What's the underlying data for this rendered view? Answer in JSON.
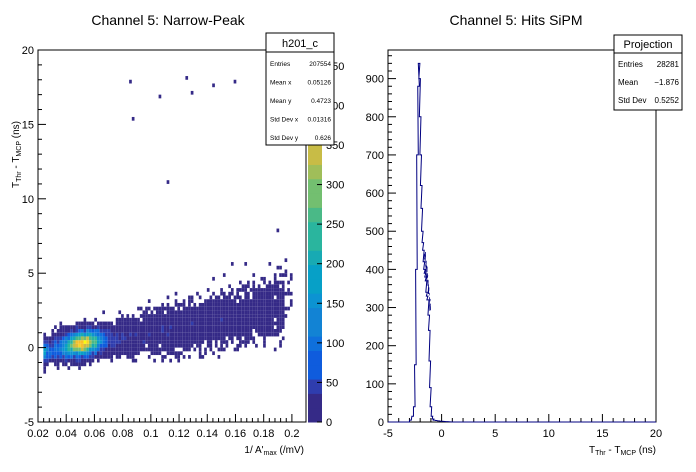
{
  "chart_data": [
    {
      "type": "heatmap",
      "title": "Channel 5: Narrow-Peak",
      "xlabel": "1/ A'max (/mV)",
      "xlabel_parts": {
        "main": "1/ A'",
        "sub": "max",
        "unit": " (/mV)"
      },
      "ylabel": "TThr - TMCP (ns)",
      "ylabel_parts": {
        "t1": "T",
        "s1": "Thr",
        "mid": " - T",
        "s2": "MCP",
        "unit": " (ns)"
      },
      "xlim": [
        0.02,
        0.21
      ],
      "ylim": [
        -5,
        20
      ],
      "x_ticks": [
        "0.02",
        "0.04",
        "0.06",
        "0.08",
        "0.1",
        "0.12",
        "0.14",
        "0.16",
        "0.18",
        "0.2"
      ],
      "y_ticks": [
        "-5",
        "0",
        "5",
        "10",
        "15",
        "20"
      ],
      "z_ticks": [
        "0",
        "50",
        "100",
        "150",
        "200",
        "250",
        "300",
        "350",
        "400",
        "450"
      ],
      "z_tick_values": [
        0,
        50,
        100,
        150,
        200,
        250,
        300,
        350,
        400,
        450
      ],
      "zlim": [
        0,
        470
      ],
      "distribution": {
        "peak_x": 0.05126,
        "peak_y": 0.4723,
        "trend_slope": 16.5,
        "trend_intercept": -0.37
      },
      "stats": {
        "name": "h201_c",
        "rows": [
          {
            "label": "Entries",
            "value": "207554"
          },
          {
            "label": "Mean x",
            "value": "0.05126"
          },
          {
            "label": "Mean y",
            "value": "0.4723"
          },
          {
            "label": "Std Dev x",
            "value": "0.01316"
          },
          {
            "label": "Std Dev y",
            "value": "0.626"
          }
        ]
      }
    },
    {
      "type": "line",
      "title": "Channel 5: Hits SiPM",
      "xlabel": "TThr - TMCP (ns)",
      "xlabel_parts": {
        "t1": "T",
        "s1": "Thr",
        "mid": " - T",
        "s2": "MCP",
        "unit": " (ns)"
      },
      "ylabel": "",
      "xlim": [
        -5,
        20
      ],
      "ylim": [
        0,
        975
      ],
      "x_ticks": [
        "-5",
        "0",
        "5",
        "10",
        "15",
        "20"
      ],
      "y_ticks": [
        "0",
        "100",
        "200",
        "300",
        "400",
        "500",
        "600",
        "700",
        "800",
        "900"
      ],
      "series": [
        {
          "x": [
            -2.9,
            -2.7,
            -2.55,
            -2.45,
            -2.35,
            -2.25,
            -2.15,
            -2.1,
            -2.05,
            -2.0,
            -1.95,
            -1.9,
            -1.85,
            -1.8,
            -1.75,
            -1.7,
            -1.65,
            -1.6,
            -1.55,
            -1.5,
            -1.45,
            -1.4,
            -1.35,
            -1.3,
            -1.25,
            -1.2,
            -1.15,
            -1.1,
            -1.05,
            -1.0,
            -0.9,
            -0.8,
            -0.7,
            -0.5,
            -0.3,
            0.0,
            0.5
          ],
          "y": [
            5,
            15,
            40,
            150,
            400,
            700,
            880,
            940,
            900,
            800,
            700,
            620,
            560,
            500,
            470,
            450,
            420,
            400,
            390,
            380,
            370,
            340,
            330,
            320,
            320,
            280,
            240,
            160,
            90,
            40,
            15,
            8,
            5,
            4,
            3,
            2,
            1
          ]
        }
      ],
      "stats": {
        "name": "Projection",
        "rows": [
          {
            "label": "Entries",
            "value": "28281"
          },
          {
            "label": "Mean",
            "value": "−1.876"
          },
          {
            "label": "Std Dev",
            "value": "0.5252"
          }
        ]
      }
    }
  ]
}
